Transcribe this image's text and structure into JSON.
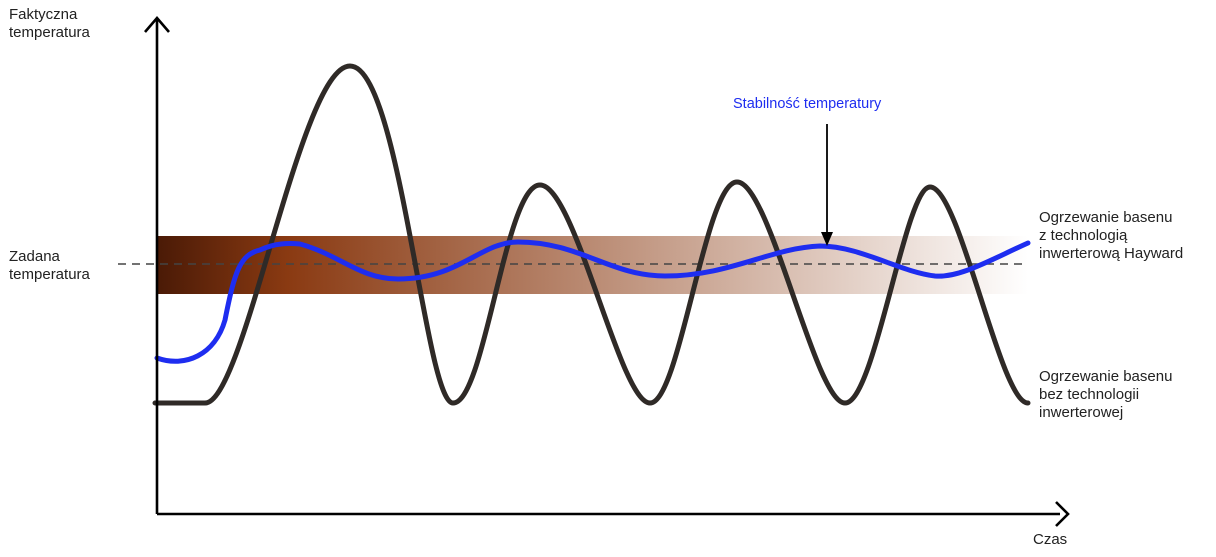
{
  "labels": {
    "y_axis": "Faktyczna\ntemperatura",
    "setpoint": "Zadana\ntemperatura",
    "x_axis": "Czas",
    "stability": "Stabilność temperatury",
    "inverter_curve": "Ogrzewanie basenu\nz technologią\ninwerterową Hayward",
    "non_inverter_curve": "Ogrzewanie basenu\nbez technologii\ninwerterowej"
  },
  "colors": {
    "inverter_line": "#1e2df0",
    "non_inverter_line": "#2f2a27",
    "stability_text": "#1e2df0",
    "band_start": "#4a1a06",
    "band_mid": "#8a3a12",
    "band_end": "#ffffff",
    "axis": "#000000"
  }
}
